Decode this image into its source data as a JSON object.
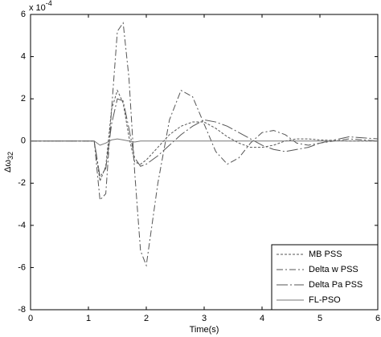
{
  "chart_data": {
    "type": "line",
    "xlabel": "Time(s)",
    "ylabel": "Δω",
    "ylabel_sub": "32",
    "y_exponent_base": "x 10",
    "y_exponent": "-4",
    "x": [
      0,
      1.1,
      1.2,
      1.3,
      1.4,
      1.5,
      1.6,
      1.7,
      1.8,
      1.9,
      2.0,
      2.2,
      2.4,
      2.6,
      2.8,
      3.0,
      3.2,
      3.4,
      3.6,
      3.8,
      4.0,
      4.2,
      4.4,
      4.6,
      4.8,
      5.0,
      5.5,
      6.0
    ],
    "series": [
      {
        "name": "MB PSS",
        "color": "#555555",
        "values": [
          0,
          0,
          -1.9,
          -1.2,
          1.5,
          2.4,
          1.8,
          0.2,
          -1.0,
          -1.1,
          -0.9,
          -0.3,
          0.3,
          0.7,
          0.9,
          0.9,
          0.6,
          0.2,
          -0.1,
          -0.3,
          -0.3,
          -0.2,
          0,
          0.1,
          0.1,
          0.05,
          0,
          0
        ]
      },
      {
        "name": "Delta w PSS",
        "color": "#555555",
        "values": [
          0,
          0,
          -2.8,
          -2.5,
          1.5,
          5.2,
          5.6,
          3.0,
          -1.5,
          -5.2,
          -5.9,
          -2.0,
          1.0,
          2.4,
          2.1,
          0.8,
          -0.5,
          -1.1,
          -0.8,
          -0.1,
          0.4,
          0.5,
          0.3,
          -0.1,
          -0.2,
          -0.1,
          0.1,
          0
        ]
      },
      {
        "name": "Delta Pa PSS",
        "color": "#555555",
        "values": [
          0,
          0,
          -1.7,
          -1.3,
          0.8,
          2.0,
          1.9,
          0.6,
          -0.8,
          -1.2,
          -1.1,
          -0.7,
          -0.2,
          0.3,
          0.7,
          1.0,
          0.9,
          0.7,
          0.4,
          0.1,
          -0.2,
          -0.4,
          -0.5,
          -0.4,
          -0.3,
          -0.1,
          0.2,
          0.1
        ]
      },
      {
        "name": "FL-PSO",
        "color": "#777777",
        "values": [
          0,
          0,
          -0.2,
          -0.1,
          0.05,
          0.1,
          0.05,
          0,
          -0.05,
          0,
          0,
          0,
          0,
          0,
          0,
          0,
          0,
          0,
          0,
          0,
          0,
          0,
          0,
          0,
          0,
          0,
          0,
          0
        ]
      }
    ],
    "xlim": [
      0,
      6
    ],
    "xticks": [
      0,
      1,
      2,
      3,
      4,
      5,
      6
    ],
    "ylim": [
      -8,
      6
    ],
    "yticks": [
      -8,
      -6,
      -4,
      -2,
      0,
      2,
      4,
      6
    ],
    "legend": "southeast"
  }
}
